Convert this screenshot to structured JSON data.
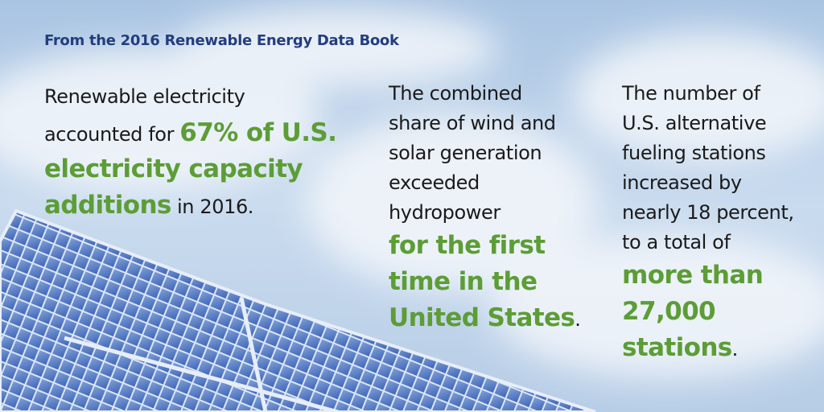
{
  "header": {
    "title": "From the 2016 Renewable Energy Data Book"
  },
  "facts": [
    {
      "lines": [
        [
          {
            "text": "Renewable electricity",
            "highlight": false
          }
        ],
        [
          {
            "text": "accounted for ",
            "highlight": false
          },
          {
            "text": "67% of U.S.",
            "highlight": true
          }
        ],
        [
          {
            "text": "electricity capacity",
            "highlight": true
          }
        ],
        [
          {
            "text": "additions",
            "highlight": true
          },
          {
            "text": " in 2016.",
            "highlight": false
          }
        ]
      ]
    },
    {
      "lines": [
        [
          {
            "text": "The combined",
            "highlight": false
          }
        ],
        [
          {
            "text": "share of wind and",
            "highlight": false
          }
        ],
        [
          {
            "text": "solar generation",
            "highlight": false
          }
        ],
        [
          {
            "text": "exceeded",
            "highlight": false
          }
        ],
        [
          {
            "text": "hydropower",
            "highlight": false
          }
        ],
        [
          {
            "text": "for the first",
            "highlight": true
          }
        ],
        [
          {
            "text": "time in the",
            "highlight": true
          }
        ],
        [
          {
            "text": "United States",
            "highlight": true
          },
          {
            "text": ".",
            "highlight": false
          }
        ]
      ]
    },
    {
      "lines": [
        [
          {
            "text": "The number of",
            "highlight": false
          }
        ],
        [
          {
            "text": "U.S. alternative",
            "highlight": false
          }
        ],
        [
          {
            "text": "fueling stations",
            "highlight": false
          }
        ],
        [
          {
            "text": "increased by",
            "highlight": false
          }
        ],
        [
          {
            "text": "nearly 18 percent,",
            "highlight": false
          }
        ],
        [
          {
            "text": "to a total of",
            "highlight": false
          }
        ],
        [
          {
            "text": "more than",
            "highlight": true
          }
        ],
        [
          {
            "text": "27,000",
            "highlight": true
          }
        ],
        [
          {
            "text": "stations",
            "highlight": true
          },
          {
            "text": ".",
            "highlight": false
          }
        ]
      ]
    }
  ]
}
